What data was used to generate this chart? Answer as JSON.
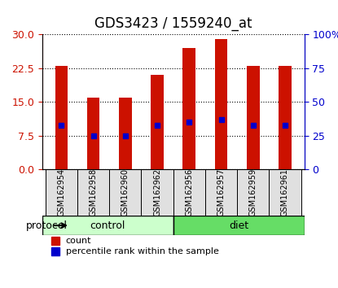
{
  "title": "GDS3423 / 1559240_at",
  "samples": [
    "GSM162954",
    "GSM162958",
    "GSM162960",
    "GSM162962",
    "GSM162956",
    "GSM162957",
    "GSM162959",
    "GSM162961"
  ],
  "counts": [
    23.0,
    16.0,
    16.0,
    21.0,
    27.0,
    29.0,
    23.0,
    23.0
  ],
  "percentiles": [
    33,
    25,
    25,
    33,
    35,
    37,
    33,
    33
  ],
  "groups": [
    {
      "label": "control",
      "start": 0,
      "end": 4,
      "color": "#ccffcc"
    },
    {
      "label": "diet",
      "start": 4,
      "end": 8,
      "color": "#66dd66"
    }
  ],
  "left_yticks": [
    0,
    7.5,
    15,
    22.5,
    30
  ],
  "right_yticks": [
    0,
    25,
    50,
    75,
    100
  ],
  "right_yticklabels": [
    "0",
    "25",
    "50",
    "75",
    "100%"
  ],
  "ylim_left": [
    0,
    30
  ],
  "ylim_right": [
    0,
    100
  ],
  "bar_color": "#cc1100",
  "dot_color": "#0000cc",
  "bar_width": 0.4,
  "protocol_label": "protocol",
  "legend_count_label": "count",
  "legend_percentile_label": "percentile rank within the sample",
  "title_fontsize": 12,
  "axis_color_left": "#cc1100",
  "axis_color_right": "#0000cc",
  "grid_color": "black",
  "grid_linestyle": "dotted"
}
